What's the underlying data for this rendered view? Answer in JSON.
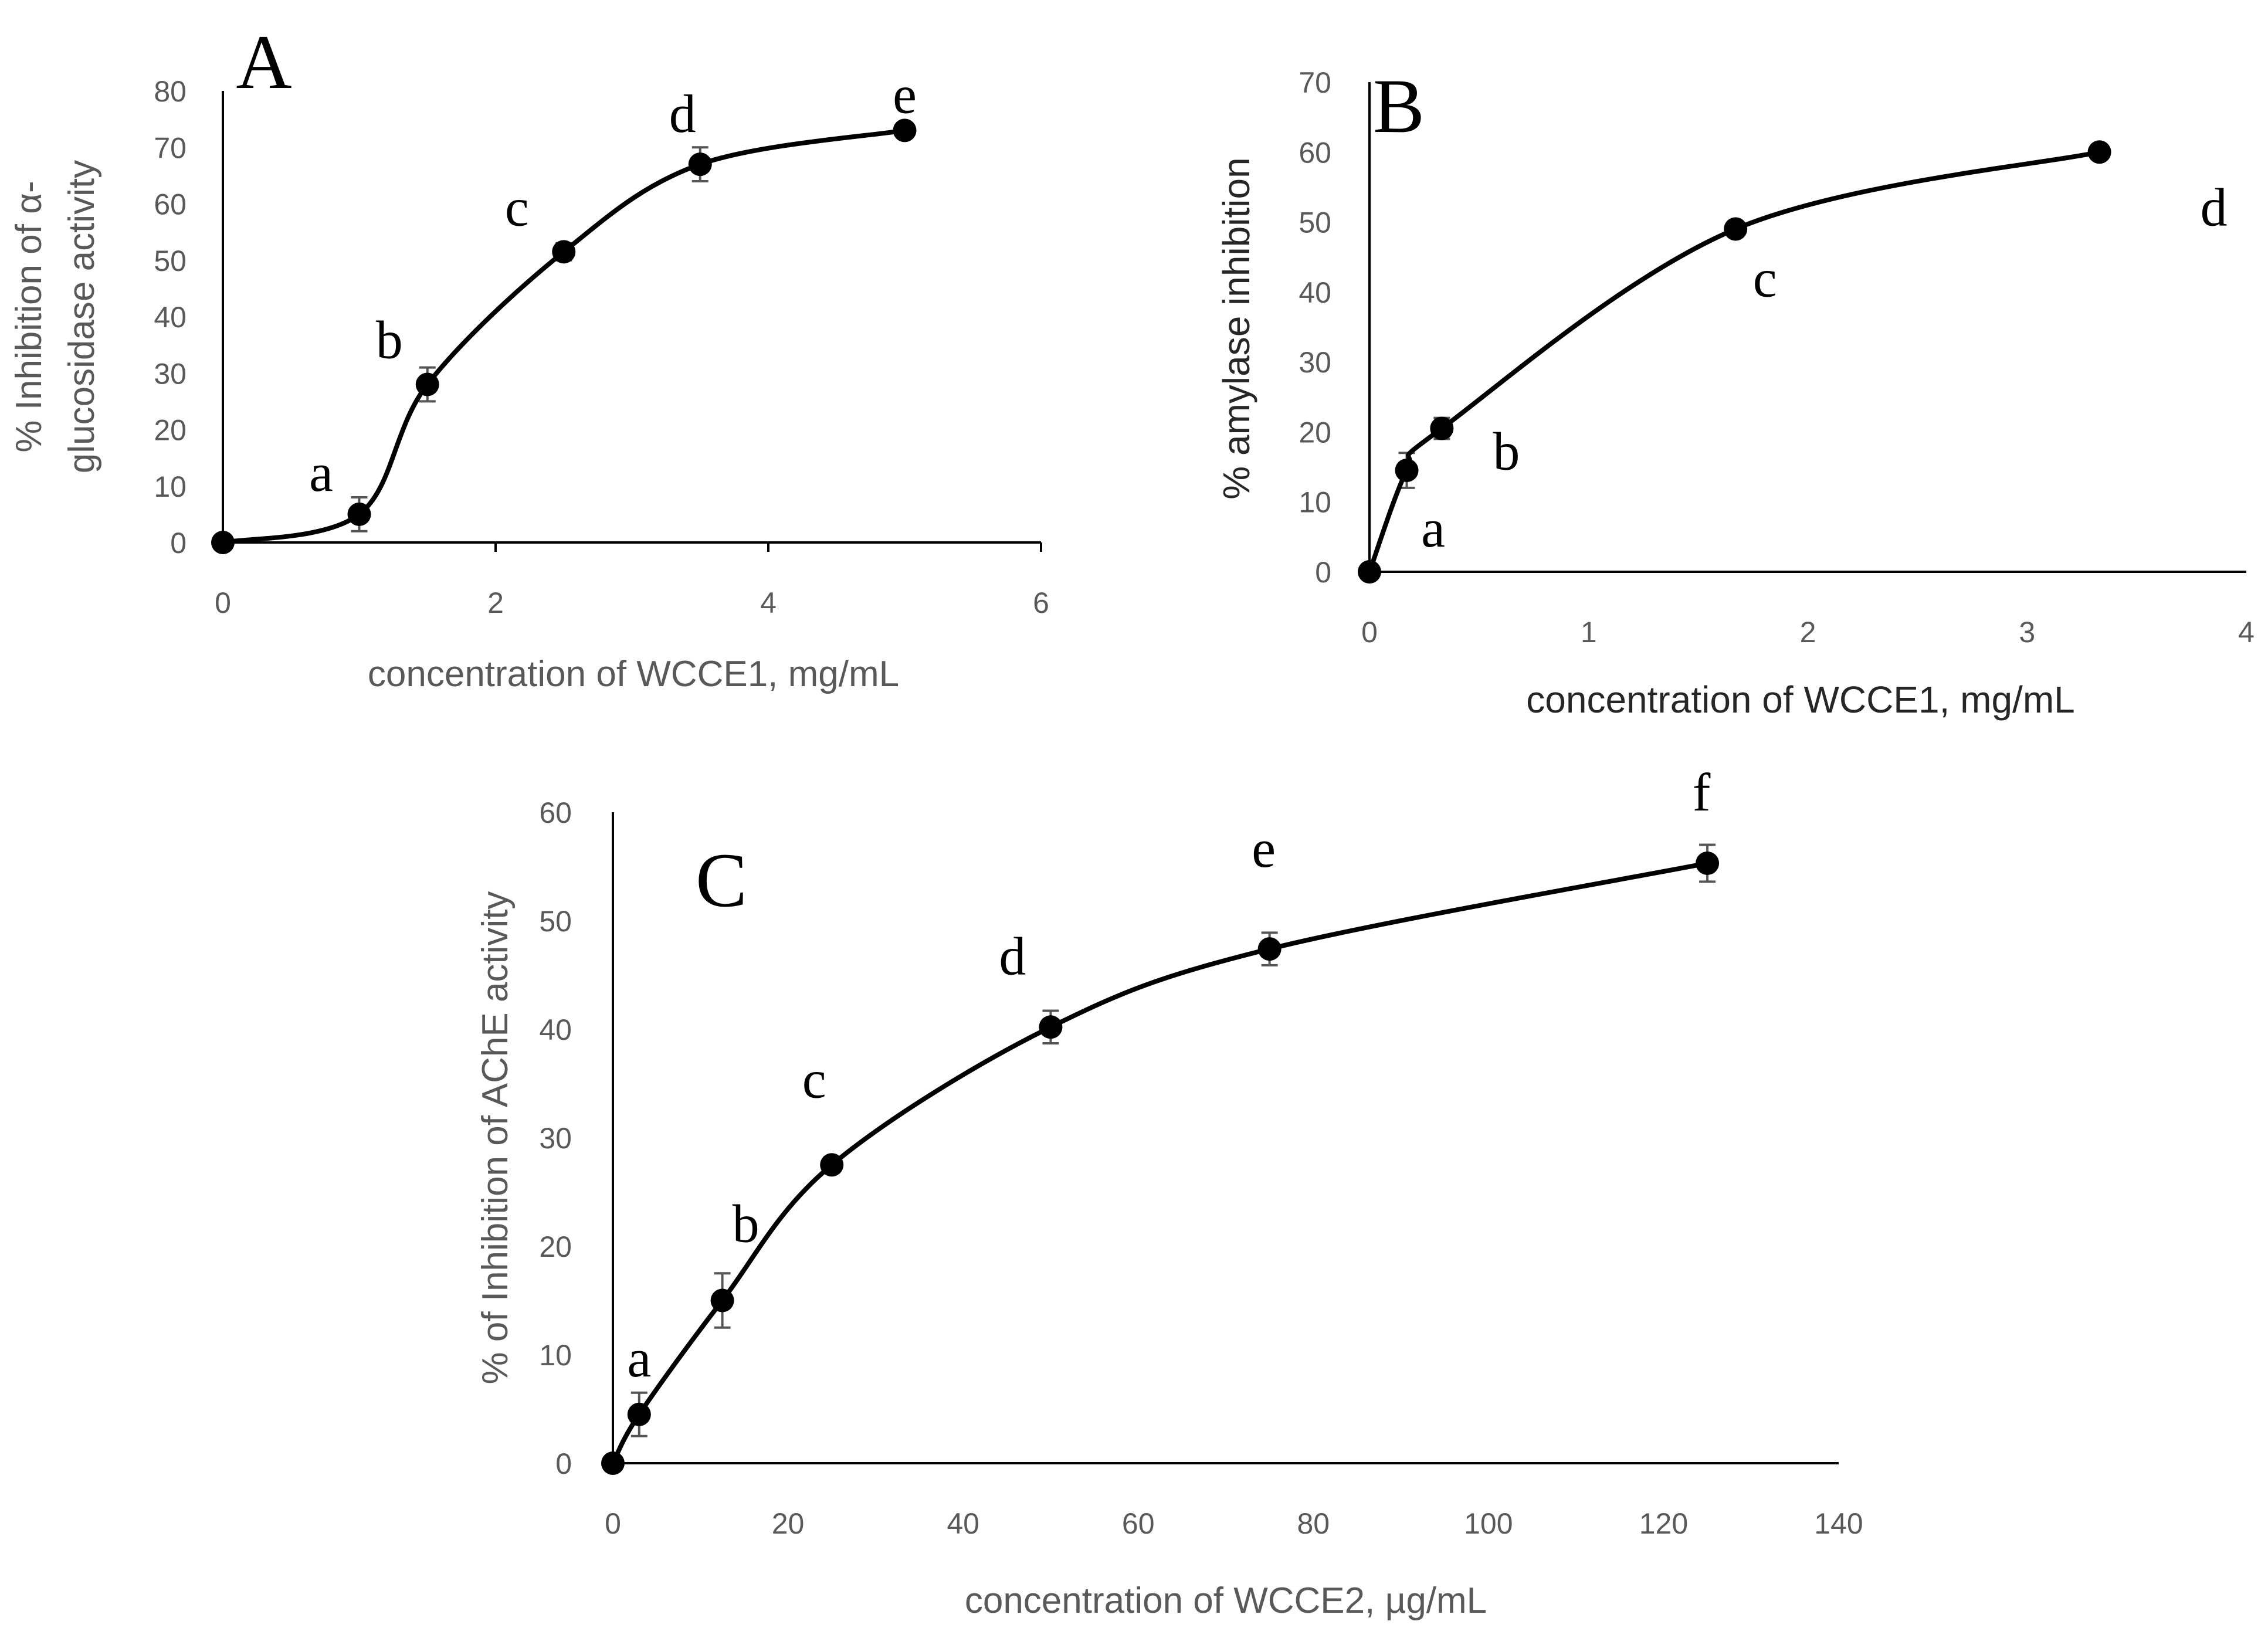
{
  "chart_data": [
    {
      "panel": "A",
      "type": "line",
      "xlabel": "concentration of WCCE1, mg/mL",
      "ylabel_lines": [
        "% Inhibition of α-",
        "glucosidase activity"
      ],
      "xlim": [
        0,
        6
      ],
      "ylim": [
        0,
        80
      ],
      "xticks": [
        0,
        2,
        4,
        6
      ],
      "yticks": [
        0,
        10,
        20,
        30,
        40,
        50,
        60,
        70,
        80
      ],
      "series": [
        {
          "x": [
            0,
            1,
            1.5,
            2.5,
            3.5,
            5
          ],
          "y": [
            0,
            5,
            28,
            51.5,
            67,
            73
          ],
          "error": [
            0,
            3,
            3,
            1.5,
            3,
            0.8
          ],
          "labels": [
            "",
            "a",
            "b",
            "c",
            "d",
            "e"
          ]
        }
      ]
    },
    {
      "panel": "B",
      "type": "line",
      "xlabel": "concentration of WCCE1, mg/mL",
      "ylabel_lines": [
        "% amylase inhibition"
      ],
      "xlim": [
        0,
        4
      ],
      "ylim": [
        0,
        70
      ],
      "xticks": [
        0,
        1,
        2,
        3,
        4
      ],
      "yticks": [
        0,
        10,
        20,
        30,
        40,
        50,
        60,
        70
      ],
      "series": [
        {
          "x": [
            0,
            0.17,
            0.33,
            1.67,
            3.33
          ],
          "y": [
            0,
            14.5,
            20.5,
            49,
            60
          ],
          "error": [
            0,
            2.5,
            1.5,
            1,
            0.5
          ],
          "labels": [
            "",
            "a",
            "b",
            "c",
            "d"
          ]
        }
      ]
    },
    {
      "panel": "C",
      "type": "line",
      "xlabel": "concentration of  WCCE2, µg/mL",
      "ylabel_lines": [
        "% of Inhibition of AChE activity"
      ],
      "xlim": [
        0,
        140
      ],
      "ylim": [
        0,
        60
      ],
      "xticks": [
        0,
        20,
        40,
        60,
        80,
        100,
        120,
        140
      ],
      "yticks": [
        0,
        10,
        20,
        30,
        40,
        50,
        60
      ],
      "series": [
        {
          "x": [
            0,
            3,
            12.5,
            25,
            50,
            75,
            125
          ],
          "y": [
            0,
            4.5,
            15,
            27.5,
            40.2,
            47.4,
            55.3
          ],
          "error": [
            0,
            2,
            2.5,
            0.7,
            1.5,
            1.5,
            1.7
          ],
          "labels": [
            "",
            "a",
            "b",
            "c",
            "d",
            "e",
            "f"
          ]
        }
      ]
    }
  ]
}
